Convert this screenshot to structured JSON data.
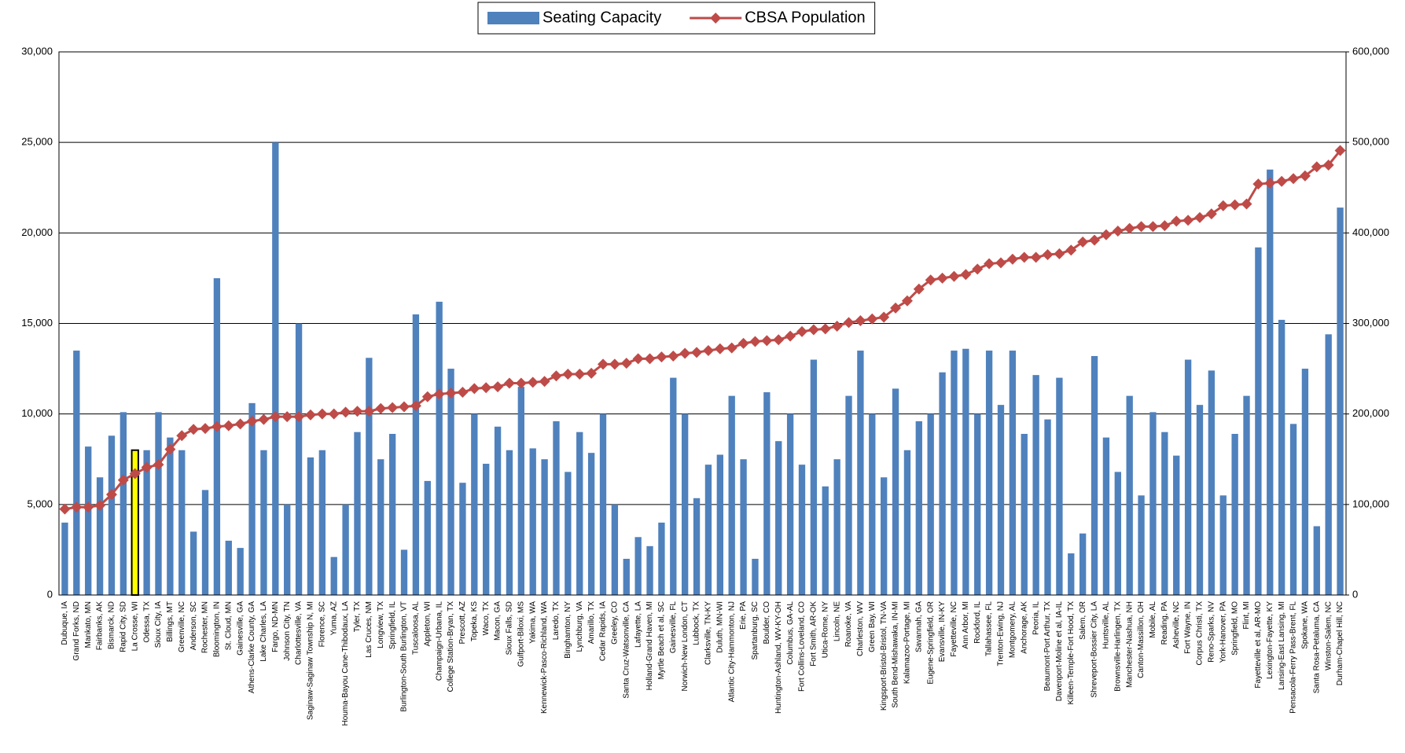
{
  "chart_data": {
    "type": "bar-line",
    "categories": [
      "Dubuque, IA",
      "Grand Forks, ND",
      "Mankato, MN",
      "Fairbanks, AK",
      "Bismarck, ND",
      "Rapid City, SD",
      "La Crosse, WI",
      "Odessa, TX",
      "Sioux City, IA",
      "Billings, MT",
      "Greenville, NC",
      "Anderson, SC",
      "Rochester, MN",
      "Bloomington, IN",
      "St. Cloud, MN",
      "Gainesville, GA",
      "Athens-Clarke County, GA",
      "Lake Charles, LA",
      "Fargo, ND-MN",
      "Johnson City, TN",
      "Charlottesville, VA",
      "Saginaw-Saginaw Township N, MI",
      "Florence, SC",
      "Yuma, AZ",
      "Houma-Bayou Cane-Thibodaux, LA",
      "Tyler, TX",
      "Las Cruces, NM",
      "Longview, TX",
      "Springfield, IL",
      "Burlington-South Burlington, VT",
      "Tuscaloosa, AL",
      "Appleton, WI",
      "Champaign-Urbana, IL",
      "College Station-Bryan, TX",
      "Prescott, AZ",
      "Topeka, KS",
      "Waco, TX",
      "Macon, GA",
      "Sioux Falls, SD",
      "Gulfport-Biloxi, MS",
      "Yakima, WA",
      "Kennewick-Pasco-Richland, WA",
      "Laredo, TX",
      "Binghamton, NY",
      "Lynchburg, VA",
      "Amarillo, TX",
      "Cedar Rapids, IA",
      "Greeley, CO",
      "Santa Cruz-Watsonville, CA",
      "Lafayette, LA",
      "Holland-Grand Haven, MI",
      "Myrtle Beach et al, SC",
      "Gainesville, FL",
      "Norwich-New London, CT",
      "Lubbock, TX",
      "Clarksville, TN-KY",
      "Duluth, MN-WI",
      "Atlantic City-Hammonton, NJ",
      "Erie, PA",
      "Spartanburg, SC",
      "Boulder, CO",
      "Huntington-Ashland, WV-KY-OH",
      "Columbus, GA-AL",
      "Fort Collins-Loveland, CO",
      "Fort Smith, AR-OK",
      "Utica-Rome, NY",
      "Lincoln, NE",
      "Roanoke, VA",
      "Charleston, WV",
      "Green Bay, WI",
      "Kingsport-Bristol-Bristol, TN-VA",
      "South Bend-Mishawaka, IN-MI",
      "Kalamazoo-Portage, MI",
      "Savannah, GA",
      "Eugene-Springfield, OR",
      "Evansville, IN-KY",
      "Fayetteville, NC",
      "Ann Arbor, MI",
      "Rockford, IL",
      "Tallahassee, FL",
      "Trenton-Ewing, NJ",
      "Montgomery, AL",
      "Anchorage, AK",
      "Peoria, IL",
      "Beaumont-Port Arthur, TX",
      "Davenport-Moline et al, IA-IL",
      "Killeen-Temple-Fort Hood, TX",
      "Salem, OR",
      "Shreveport-Bossier City, LA",
      "Huntsville, AL",
      "Brownsville-Harlingen, TX",
      "Manchester-Nashua, NH",
      "Canton-Massillon, OH",
      "Mobile, AL",
      "Reading, PA",
      "Asheville, NC",
      "Fort Wayne, IN",
      "Corpus Christi, TX",
      "Reno-Sparks, NV",
      "York-Hanover, PA",
      "Springfield, MO",
      "Flint, MI",
      "Fayetteville et al, AR-MO",
      "Lexington-Fayette, KY",
      "Lansing-East Lansing, MI",
      "Pensacola-Ferry Pass-Brent, FL",
      "Spokane, WA",
      "Santa Rosa-Petaluma, CA",
      "Winston-Salem, NC",
      "Durham-Chapel Hill, NC"
    ],
    "series": [
      {
        "name": "Seating Capacity",
        "type": "bar",
        "color": "#4f81bd",
        "axis": "y",
        "values": [
          4000,
          13500,
          8200,
          6500,
          8800,
          10100,
          8000,
          8000,
          10100,
          8700,
          8000,
          3500,
          5800,
          17500,
          3000,
          2600,
          10600,
          8000,
          25000,
          5000,
          15000,
          7600,
          8000,
          2100,
          5000,
          9000,
          13100,
          7500,
          8900,
          2500,
          15500,
          6300,
          16200,
          12500,
          6200,
          10000,
          7250,
          9300,
          8000,
          11500,
          8100,
          7500,
          9600,
          6800,
          9000,
          7850,
          10000,
          5000,
          2000,
          3200,
          2700,
          4000,
          12000,
          10000,
          5350,
          7200,
          7750,
          11000,
          7500,
          2000,
          11200,
          8500,
          10000,
          7200,
          13000,
          6000,
          7500,
          11000,
          13500,
          10000,
          6500,
          11400,
          8000,
          9600,
          10000,
          12300,
          13500,
          13600,
          10000,
          13500,
          10500,
          13500,
          8900,
          12150,
          9700,
          12000,
          2300,
          3400,
          13200,
          8700,
          6800,
          11000,
          5500,
          10100,
          9000,
          7700,
          13000,
          10500,
          12400,
          5500,
          8900,
          11000,
          19200,
          23500,
          15200,
          9450,
          12500,
          3800,
          14400,
          21400
        ],
        "highlight": {
          "category": "La Crosse, WI",
          "color": "#ffff00",
          "border": "#000000"
        }
      },
      {
        "name": "CBSA Population",
        "type": "line",
        "color": "#be4b48",
        "axis": "y2",
        "values": [
          95000,
          97000,
          97000,
          99000,
          111000,
          127000,
          134000,
          141000,
          144000,
          161000,
          176000,
          183000,
          184000,
          186000,
          187000,
          189000,
          192000,
          194000,
          197000,
          197000,
          197000,
          199000,
          200000,
          200000,
          202000,
          203000,
          203000,
          206000,
          207000,
          208000,
          209000,
          219000,
          222000,
          223000,
          224000,
          228000,
          229000,
          230000,
          234000,
          234000,
          235000,
          236000,
          242000,
          244000,
          244000,
          245000,
          255000,
          255000,
          256000,
          261000,
          261000,
          263000,
          264000,
          267000,
          268000,
          270000,
          272000,
          273000,
          278000,
          280000,
          281000,
          282000,
          286000,
          291000,
          293000,
          294000,
          297000,
          301000,
          303000,
          305000,
          307000,
          317000,
          325000,
          338000,
          348000,
          350000,
          352000,
          354000,
          360000,
          366000,
          367000,
          371000,
          373000,
          373000,
          376000,
          377000,
          381000,
          390000,
          392000,
          398000,
          402000,
          405000,
          407000,
          407000,
          408000,
          413000,
          414000,
          417000,
          421000,
          430000,
          431000,
          432000,
          454000,
          455000,
          457000,
          460000,
          463000,
          473000,
          475000,
          491000
        ]
      }
    ],
    "ylim": [
      0,
      30000
    ],
    "yticks": [
      0,
      {
        "value": 5000,
        "label": "5,000"
      },
      {
        "value": 10000,
        "label": "10,000"
      },
      {
        "value": 15000,
        "label": "15,000"
      },
      {
        "value": 20000,
        "label": "20,000"
      },
      {
        "value": 25000,
        "label": "25,000"
      },
      {
        "value": 30000,
        "label": "30,000"
      }
    ],
    "y2lim": [
      0,
      600000
    ],
    "y2ticks": [
      0,
      {
        "value": 100000,
        "label": "100,000"
      },
      {
        "value": 200000,
        "label": "200,000"
      },
      {
        "value": 300000,
        "label": "300,000"
      },
      {
        "value": 400000,
        "label": "400,000"
      },
      {
        "value": 500000,
        "label": "500,000"
      },
      {
        "value": 600000,
        "label": "600,000"
      }
    ],
    "grid": true,
    "legend": "top"
  }
}
